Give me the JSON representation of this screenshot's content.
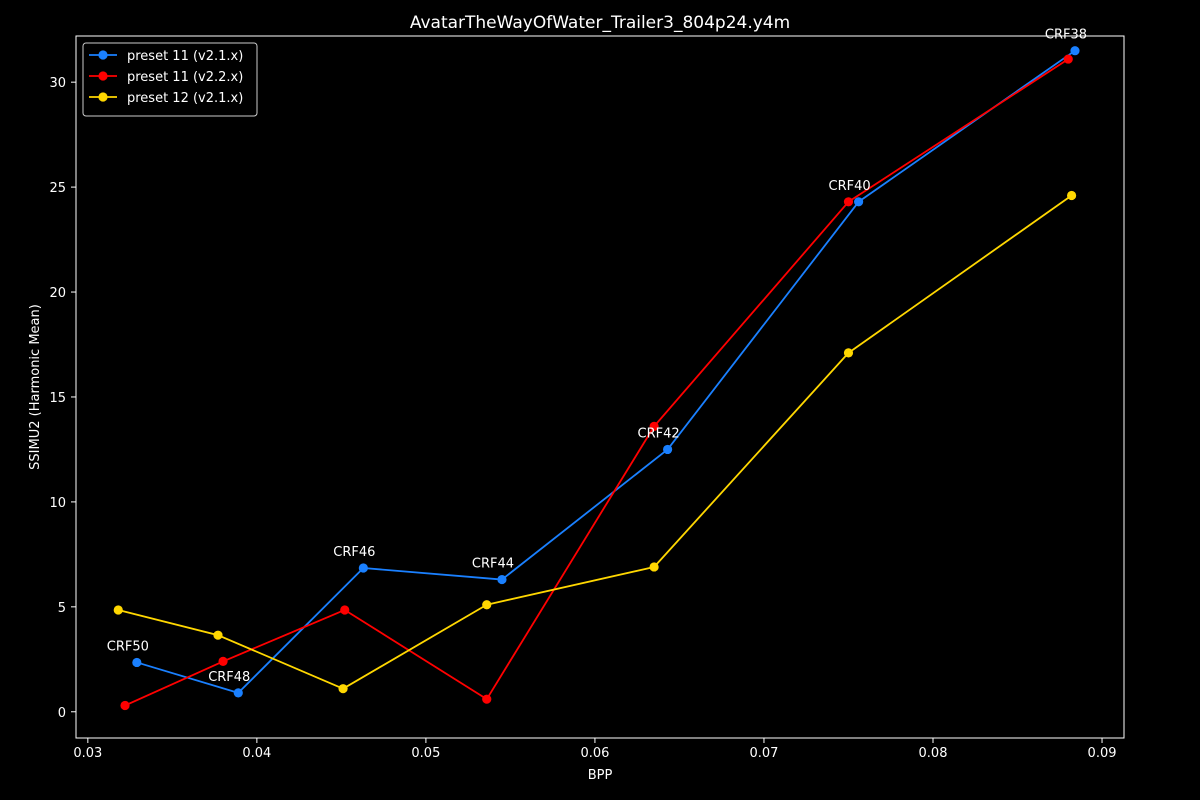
{
  "chart_data": {
    "type": "line",
    "title": "AvatarTheWayOfWater_Trailer3_804p24.y4m",
    "xlabel": "BPP",
    "ylabel": "SSIMU2 (Harmonic Mean)",
    "xlim": [
      0.0293,
      0.0913
    ],
    "ylim": [
      -1.25,
      32.2
    ],
    "xticks": [
      0.03,
      0.04,
      0.05,
      0.06,
      0.07,
      0.08,
      0.09
    ],
    "xtick_labels": [
      "0.03",
      "0.04",
      "0.05",
      "0.06",
      "0.07",
      "0.08",
      "0.09"
    ],
    "yticks": [
      0,
      5,
      10,
      15,
      20,
      25,
      30
    ],
    "ytick_labels": [
      "0",
      "5",
      "10",
      "15",
      "20",
      "25",
      "30"
    ],
    "grid": false,
    "legend_position": "top-left",
    "series": [
      {
        "name": "preset 11 (v2.1.x)",
        "color": "#1a80ff",
        "x": [
          0.0329,
          0.0389,
          0.0463,
          0.0545,
          0.0643,
          0.0756,
          0.0884
        ],
        "y": [
          2.35,
          0.9,
          6.85,
          6.3,
          12.5,
          24.3,
          31.5
        ]
      },
      {
        "name": "preset 11 (v2.2.x)",
        "color": "#ff0000",
        "x": [
          0.0322,
          0.038,
          0.0452,
          0.0536,
          0.0635,
          0.075,
          0.088
        ],
        "y": [
          0.3,
          2.4,
          4.85,
          0.6,
          13.6,
          24.3,
          31.1
        ]
      },
      {
        "name": "preset 12 (v2.1.x)",
        "color": "#ffd700",
        "x": [
          0.0318,
          0.0377,
          0.0451,
          0.0536,
          0.0635,
          0.075,
          0.0882
        ],
        "y": [
          4.85,
          3.65,
          1.1,
          5.1,
          6.9,
          17.1,
          24.6
        ]
      }
    ],
    "annotations": [
      {
        "text": "CRF50",
        "x": 0.0329,
        "y": 2.35
      },
      {
        "text": "CRF48",
        "x": 0.0389,
        "y": 0.9
      },
      {
        "text": "CRF46",
        "x": 0.0463,
        "y": 6.85
      },
      {
        "text": "CRF44",
        "x": 0.0545,
        "y": 6.3
      },
      {
        "text": "CRF42",
        "x": 0.0643,
        "y": 12.5
      },
      {
        "text": "CRF40",
        "x": 0.0756,
        "y": 24.3
      },
      {
        "text": "CRF38",
        "x": 0.0884,
        "y": 31.5
      }
    ]
  }
}
